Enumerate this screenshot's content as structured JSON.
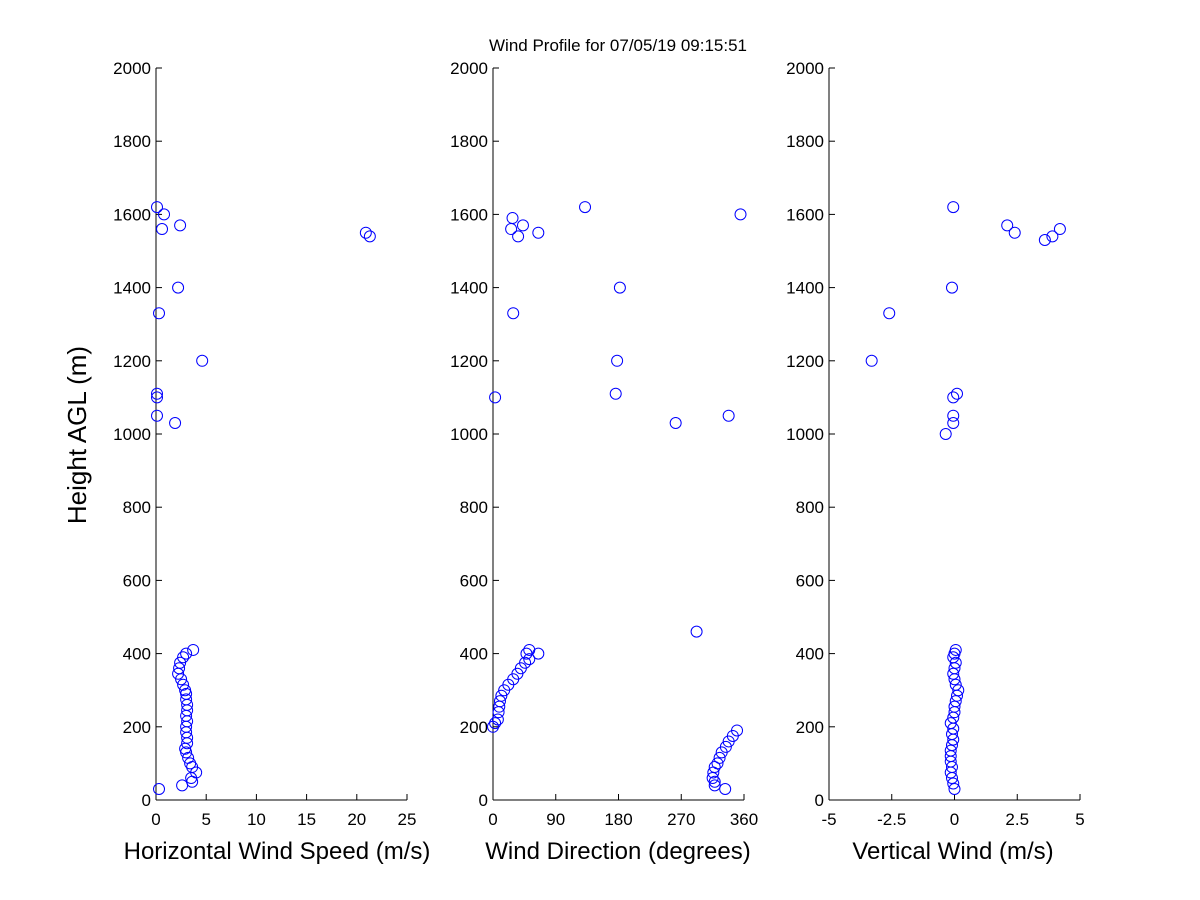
{
  "figure": {
    "title": "Wind Profile for  07/05/19 09:15:51",
    "ylabel": "Height AGL (m)",
    "marker_color": "#0000ff",
    "background": "#ffffff"
  },
  "chart_data": [
    {
      "type": "scatter",
      "id": "speed",
      "xlabel": "Horizontal Wind Speed (m/s)",
      "ylabel": "Height AGL (m)",
      "xlim": [
        0,
        25
      ],
      "ylim": [
        0,
        2000
      ],
      "xticks": [
        0,
        5,
        10,
        15,
        20,
        25
      ],
      "xtick_labels": [
        "0",
        "5",
        "10",
        "15",
        "20",
        "25"
      ],
      "yticks": [
        0,
        200,
        400,
        600,
        800,
        1000,
        1200,
        1400,
        1600,
        1800,
        2000
      ],
      "ytick_labels": [
        "0",
        "200",
        "400",
        "600",
        "800",
        "1000",
        "1200",
        "1400",
        "1600",
        "1800",
        "2000"
      ],
      "grid": false,
      "points": [
        [
          0.3,
          30
        ],
        [
          2.6,
          40
        ],
        [
          3.6,
          50
        ],
        [
          3.5,
          60
        ],
        [
          4.0,
          75
        ],
        [
          3.6,
          90
        ],
        [
          3.4,
          100
        ],
        [
          3.2,
          115
        ],
        [
          3.0,
          130
        ],
        [
          2.9,
          140
        ],
        [
          3.1,
          155
        ],
        [
          3.1,
          170
        ],
        [
          3.0,
          185
        ],
        [
          3.0,
          200
        ],
        [
          3.1,
          215
        ],
        [
          3.0,
          230
        ],
        [
          3.1,
          245
        ],
        [
          3.1,
          260
        ],
        [
          3.0,
          275
        ],
        [
          3.0,
          290
        ],
        [
          2.9,
          300
        ],
        [
          2.7,
          315
        ],
        [
          2.5,
          330
        ],
        [
          2.2,
          345
        ],
        [
          2.3,
          360
        ],
        [
          2.4,
          375
        ],
        [
          2.7,
          390
        ],
        [
          3.0,
          400
        ],
        [
          3.7,
          410
        ],
        [
          1.9,
          1030
        ],
        [
          0.1,
          1050
        ],
        [
          0.1,
          1100
        ],
        [
          0.1,
          1110
        ],
        [
          4.6,
          1200
        ],
        [
          0.3,
          1330
        ],
        [
          2.2,
          1400
        ],
        [
          21.3,
          1540
        ],
        [
          20.9,
          1550
        ],
        [
          0.6,
          1560
        ],
        [
          2.4,
          1570
        ],
        [
          0.8,
          1600
        ],
        [
          0.1,
          1620
        ]
      ]
    },
    {
      "type": "scatter",
      "id": "direction",
      "xlabel": "Wind Direction (degrees)",
      "ylabel": "",
      "xlim": [
        0,
        360
      ],
      "ylim": [
        0,
        2000
      ],
      "xticks": [
        0,
        90,
        180,
        270,
        360
      ],
      "xtick_labels": [
        "0",
        "90",
        "180",
        "270",
        "360"
      ],
      "yticks": [
        0,
        200,
        400,
        600,
        800,
        1000,
        1200,
        1400,
        1600,
        1800,
        2000
      ],
      "ytick_labels": [
        "0",
        "200",
        "400",
        "600",
        "800",
        "1000",
        "1200",
        "1400",
        "1600",
        "1800",
        "2000"
      ],
      "grid": false,
      "points": [
        [
          333,
          30
        ],
        [
          318,
          40
        ],
        [
          318,
          50
        ],
        [
          315,
          60
        ],
        [
          316,
          75
        ],
        [
          318,
          90
        ],
        [
          322,
          100
        ],
        [
          325,
          115
        ],
        [
          328,
          130
        ],
        [
          334,
          145
        ],
        [
          338,
          160
        ],
        [
          344,
          175
        ],
        [
          350,
          190
        ],
        [
          0,
          200
        ],
        [
          3,
          210
        ],
        [
          7,
          220
        ],
        [
          8,
          240
        ],
        [
          9,
          255
        ],
        [
          10,
          270
        ],
        [
          12,
          285
        ],
        [
          16,
          300
        ],
        [
          22,
          315
        ],
        [
          29,
          330
        ],
        [
          35,
          345
        ],
        [
          40,
          360
        ],
        [
          46,
          375
        ],
        [
          52,
          385
        ],
        [
          48,
          400
        ],
        [
          65,
          400
        ],
        [
          52,
          410
        ],
        [
          292,
          460
        ],
        [
          262,
          1030
        ],
        [
          338,
          1050
        ],
        [
          3,
          1100
        ],
        [
          176,
          1110
        ],
        [
          178,
          1200
        ],
        [
          29,
          1330
        ],
        [
          182,
          1400
        ],
        [
          36,
          1540
        ],
        [
          65,
          1550
        ],
        [
          26,
          1560
        ],
        [
          43,
          1570
        ],
        [
          28,
          1590
        ],
        [
          355,
          1600
        ],
        [
          132,
          1620
        ]
      ]
    },
    {
      "type": "scatter",
      "id": "vertical",
      "xlabel": "Vertical Wind (m/s)",
      "ylabel": "",
      "xlim": [
        -5,
        5
      ],
      "ylim": [
        0,
        2000
      ],
      "xticks": [
        -5,
        -2.5,
        0,
        2.5,
        5
      ],
      "xtick_labels": [
        "-5",
        "-2.5",
        "0",
        "2.5",
        "5"
      ],
      "yticks": [
        0,
        200,
        400,
        600,
        800,
        1000,
        1200,
        1400,
        1600,
        1800,
        2000
      ],
      "ytick_labels": [
        "0",
        "200",
        "400",
        "600",
        "800",
        "1000",
        "1200",
        "1400",
        "1600",
        "1800",
        "2000"
      ],
      "grid": false,
      "points": [
        [
          0.0,
          30
        ],
        [
          -0.05,
          45
        ],
        [
          -0.1,
          60
        ],
        [
          -0.15,
          75
        ],
        [
          -0.1,
          90
        ],
        [
          -0.15,
          105
        ],
        [
          -0.15,
          120
        ],
        [
          -0.15,
          135
        ],
        [
          -0.1,
          150
        ],
        [
          -0.05,
          165
        ],
        [
          -0.1,
          180
        ],
        [
          -0.05,
          195
        ],
        [
          -0.15,
          210
        ],
        [
          -0.05,
          225
        ],
        [
          0.0,
          240
        ],
        [
          0.0,
          255
        ],
        [
          0.05,
          270
        ],
        [
          0.1,
          285
        ],
        [
          0.15,
          300
        ],
        [
          0.05,
          315
        ],
        [
          0.0,
          330
        ],
        [
          -0.05,
          345
        ],
        [
          0.0,
          360
        ],
        [
          0.05,
          375
        ],
        [
          -0.05,
          390
        ],
        [
          0.0,
          400
        ],
        [
          0.05,
          410
        ],
        [
          -0.35,
          1000
        ],
        [
          -0.05,
          1030
        ],
        [
          -0.05,
          1050
        ],
        [
          -0.05,
          1100
        ],
        [
          0.1,
          1110
        ],
        [
          -3.3,
          1200
        ],
        [
          -2.6,
          1330
        ],
        [
          -0.1,
          1400
        ],
        [
          3.6,
          1530
        ],
        [
          3.9,
          1540
        ],
        [
          2.4,
          1550
        ],
        [
          4.2,
          1560
        ],
        [
          2.1,
          1570
        ],
        [
          -0.05,
          1620
        ]
      ]
    }
  ]
}
